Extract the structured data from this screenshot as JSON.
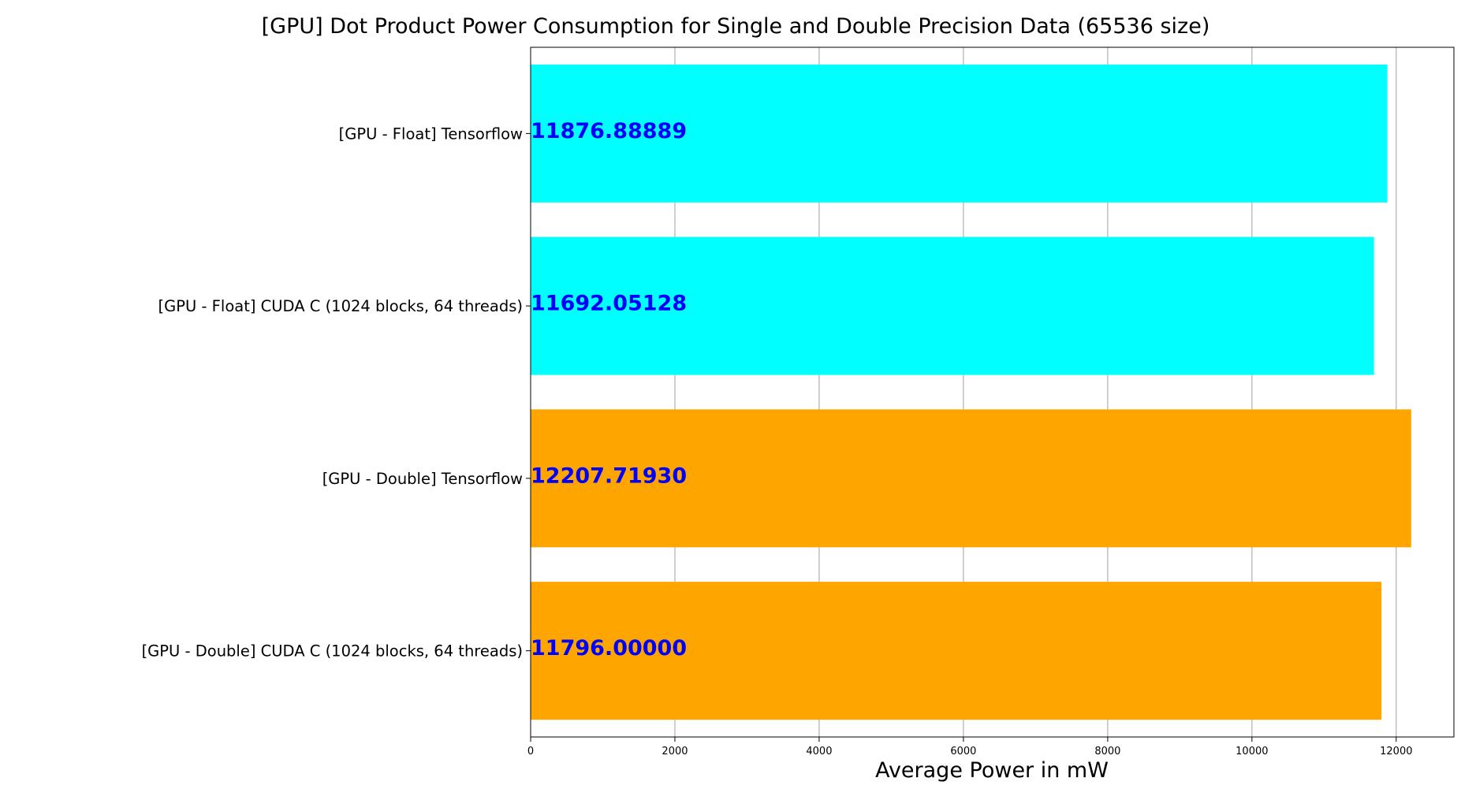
{
  "chart_data": {
    "type": "bar",
    "orientation": "horizontal",
    "title": "[GPU] Dot Product Power Consumption for Single and Double Precision Data (65536 size)",
    "xlabel": "Average Power in mW",
    "ylabel": "",
    "categories": [
      "[GPU - Float] Tensorflow",
      "[GPU - Float] CUDA C (1024 blocks, 64 threads)",
      "[GPU - Double] Tensorflow",
      "[GPU - Double] CUDA C (1024 blocks, 64 threads)"
    ],
    "values": [
      11876.88889,
      11692.05128,
      12207.7193,
      11796.0
    ],
    "value_labels": [
      "11876.88889",
      "11692.05128",
      "12207.71930",
      "11796.00000"
    ],
    "bar_colors": [
      "#00ffff",
      "#00ffff",
      "#ffa500",
      "#ffa500"
    ],
    "label_color": "#0000ff",
    "xlim": [
      0,
      12800
    ],
    "xticks": [
      0,
      2000,
      4000,
      6000,
      8000,
      10000,
      12000
    ],
    "xtick_labels": [
      "0",
      "2000",
      "4000",
      "6000",
      "8000",
      "10000",
      "12000"
    ],
    "grid": "vertical",
    "legend": "none"
  }
}
